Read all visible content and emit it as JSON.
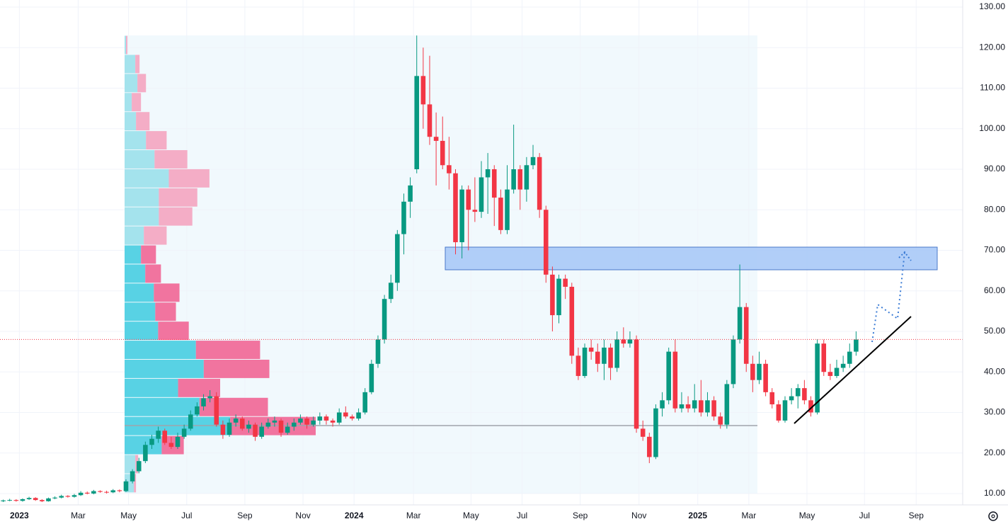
{
  "chart_data": {
    "type": "candlestick",
    "ylim": [
      7.2,
      131.75
    ],
    "yticks": [
      {
        "value": 10,
        "label": "10.00"
      },
      {
        "value": 20,
        "label": "20.00"
      },
      {
        "value": 30,
        "label": "30.00"
      },
      {
        "value": 40,
        "label": "40.00"
      },
      {
        "value": 50,
        "label": "50.00"
      },
      {
        "value": 60,
        "label": "60.00"
      },
      {
        "value": 70,
        "label": "70.00"
      },
      {
        "value": 80,
        "label": "80.00"
      },
      {
        "value": 90,
        "label": "90.00"
      },
      {
        "value": 100,
        "label": "100.00"
      },
      {
        "value": 110,
        "label": "110.00"
      },
      {
        "value": 120,
        "label": "120.00"
      },
      {
        "value": 130,
        "label": "130.00"
      }
    ],
    "xlim": [
      -0.5,
      148.5
    ],
    "xticks": [
      {
        "value": 2.5,
        "label": "2023"
      },
      {
        "value": 11.6,
        "label": "Mar"
      },
      {
        "value": 19.4,
        "label": "May"
      },
      {
        "value": 28.4,
        "label": "Jul"
      },
      {
        "value": 37.4,
        "label": "Sep"
      },
      {
        "value": 46.4,
        "label": "Nov"
      },
      {
        "value": 54.3,
        "label": "2024"
      },
      {
        "value": 63.5,
        "label": "Mar"
      },
      {
        "value": 72.4,
        "label": "May"
      },
      {
        "value": 80.3,
        "label": "Jul"
      },
      {
        "value": 89.3,
        "label": "Sep"
      },
      {
        "value": 98.4,
        "label": "Nov"
      },
      {
        "value": 107.5,
        "label": "2025"
      },
      {
        "value": 115.4,
        "label": "Mar"
      },
      {
        "value": 124.4,
        "label": "May"
      },
      {
        "value": 133.3,
        "label": "Jul"
      },
      {
        "value": 141.3,
        "label": "Sep"
      }
    ],
    "grid": true,
    "up_color": "#089981",
    "down_color": "#f23645",
    "candles": [
      [
        8.1,
        8.5,
        7.9,
        8.3
      ],
      [
        8.3,
        8.7,
        8.1,
        8.4
      ],
      [
        8.4,
        8.6,
        8.0,
        8.2
      ],
      [
        8.2,
        8.8,
        8.0,
        8.6
      ],
      [
        8.6,
        9.2,
        8.4,
        8.9
      ],
      [
        8.9,
        9.1,
        8.2,
        8.4
      ],
      [
        8.4,
        8.6,
        7.9,
        8.1
      ],
      [
        8.1,
        9.0,
        8.0,
        8.8
      ],
      [
        8.8,
        9.3,
        8.6,
        9.0
      ],
      [
        9.0,
        9.7,
        8.8,
        9.4
      ],
      [
        9.4,
        9.6,
        9.0,
        9.2
      ],
      [
        9.2,
        9.9,
        9.0,
        9.6
      ],
      [
        9.6,
        10.6,
        9.4,
        10.2
      ],
      [
        10.2,
        10.5,
        9.8,
        10.0
      ],
      [
        10.0,
        10.9,
        9.8,
        10.6
      ],
      [
        10.6,
        10.8,
        10.2,
        10.4
      ],
      [
        10.4,
        10.7,
        10.0,
        10.3
      ],
      [
        10.3,
        11.1,
        10.1,
        10.8
      ],
      [
        10.8,
        11.0,
        10.3,
        10.6
      ],
      [
        10.6,
        13.5,
        10.4,
        13.0
      ],
      [
        13.0,
        16.0,
        12.5,
        15.5
      ],
      [
        15.5,
        18.8,
        15.0,
        18.0
      ],
      [
        18.0,
        22.8,
        17.5,
        22.0
      ],
      [
        22.0,
        24.5,
        21.0,
        23.5
      ],
      [
        23.5,
        26.5,
        22.5,
        25.5
      ],
      [
        25.5,
        26.0,
        22.0,
        22.5
      ],
      [
        22.5,
        24.0,
        21.0,
        21.5
      ],
      [
        21.5,
        25.0,
        21.0,
        24.0
      ],
      [
        24.0,
        27.0,
        23.5,
        26.0
      ],
      [
        26.0,
        30.5,
        25.5,
        29.5
      ],
      [
        29.5,
        32.5,
        29.0,
        31.5
      ],
      [
        31.5,
        34.5,
        30.5,
        33.5
      ],
      [
        33.5,
        35.5,
        32.5,
        34.0
      ],
      [
        34.0,
        35.0,
        26.5,
        27.0
      ],
      [
        27.0,
        28.0,
        23.5,
        24.5
      ],
      [
        24.5,
        28.5,
        24.0,
        27.5
      ],
      [
        27.5,
        29.5,
        26.5,
        28.5
      ],
      [
        28.5,
        29.0,
        25.5,
        26.0
      ],
      [
        26.0,
        28.0,
        25.0,
        27.0
      ],
      [
        27.0,
        27.5,
        23.0,
        24.0
      ],
      [
        24.0,
        27.5,
        23.5,
        26.5
      ],
      [
        26.5,
        28.5,
        26.0,
        27.5
      ],
      [
        27.5,
        29.0,
        26.5,
        28.0
      ],
      [
        28.0,
        28.5,
        24.0,
        25.0
      ],
      [
        25.0,
        27.5,
        24.5,
        26.5
      ],
      [
        26.5,
        28.5,
        25.5,
        27.5
      ],
      [
        27.5,
        29.5,
        27.0,
        28.5
      ],
      [
        28.5,
        29.0,
        26.0,
        27.0
      ],
      [
        27.0,
        29.0,
        26.5,
        28.0
      ],
      [
        28.0,
        30.0,
        27.0,
        29.0
      ],
      [
        29.0,
        29.5,
        27.0,
        28.0
      ],
      [
        28.0,
        28.5,
        26.5,
        27.5
      ],
      [
        27.5,
        31.0,
        27.0,
        30.0
      ],
      [
        30.0,
        31.5,
        28.5,
        29.0
      ],
      [
        29.0,
        29.5,
        28.0,
        28.5
      ],
      [
        28.5,
        31.0,
        28.0,
        30.0
      ],
      [
        30.0,
        36.0,
        29.5,
        35.0
      ],
      [
        35.0,
        43.0,
        34.5,
        42.0
      ],
      [
        42.0,
        49.0,
        41.0,
        48.0
      ],
      [
        48.0,
        59.0,
        47.0,
        58.0
      ],
      [
        58.0,
        64.0,
        57.0,
        62.0
      ],
      [
        62.0,
        75.0,
        60.0,
        74.0
      ],
      [
        74.0,
        84.0,
        69.0,
        82.0
      ],
      [
        82.0,
        88.0,
        78.0,
        86.0
      ],
      [
        90.0,
        123.0,
        89.0,
        113.0
      ],
      [
        113.0,
        120.0,
        100.0,
        106.0
      ],
      [
        106.0,
        118.0,
        96.0,
        98.0
      ],
      [
        98.0,
        104.0,
        86.0,
        97.0
      ],
      [
        97.0,
        103.0,
        90.0,
        91.0
      ],
      [
        91.0,
        98.0,
        85.0,
        89.0
      ],
      [
        89.0,
        90.0,
        69.0,
        72.0
      ],
      [
        72.0,
        86.0,
        68.0,
        85.0
      ],
      [
        85.0,
        86.0,
        70.0,
        80.0
      ],
      [
        80.0,
        88.0,
        77.0,
        79.5
      ],
      [
        79.5,
        92.0,
        78.0,
        88.0
      ],
      [
        88.0,
        94.0,
        79.0,
        90.0
      ],
      [
        90.0,
        91.0,
        76.0,
        83.0
      ],
      [
        83.0,
        85.0,
        74.0,
        75.0
      ],
      [
        75.0,
        91.0,
        74.0,
        85.0
      ],
      [
        85.0,
        101.0,
        84.0,
        90.0
      ],
      [
        90.0,
        91.0,
        80.0,
        85.0
      ],
      [
        85.0,
        93.0,
        82.0,
        91.0
      ],
      [
        91.0,
        96.0,
        90.0,
        93.0
      ],
      [
        93.0,
        94.0,
        78.0,
        80.0
      ],
      [
        80.0,
        81.0,
        62.0,
        64.0
      ],
      [
        64.0,
        66.0,
        50.0,
        54.0
      ],
      [
        54.0,
        64.0,
        52.0,
        63.0
      ],
      [
        63.0,
        64.0,
        58.0,
        61.0
      ],
      [
        61.0,
        62.0,
        42.0,
        44.0
      ],
      [
        44.0,
        46.0,
        38.0,
        39.0
      ],
      [
        39.0,
        47.0,
        38.5,
        46.0
      ],
      [
        46.0,
        48.0,
        43.0,
        45.0
      ],
      [
        45.0,
        47.0,
        40.0,
        42.0
      ],
      [
        42.0,
        48.0,
        38.0,
        46.0
      ],
      [
        46.0,
        47.0,
        38.0,
        41.0
      ],
      [
        41.0,
        50.0,
        40.0,
        48.0
      ],
      [
        48.0,
        51.0,
        46.0,
        47.0
      ],
      [
        47.0,
        50.0,
        46.0,
        48.0
      ],
      [
        48.0,
        49.0,
        25.0,
        26.0
      ],
      [
        26.0,
        28.0,
        23.0,
        24.0
      ],
      [
        24.0,
        25.0,
        17.5,
        19.0
      ],
      [
        19.0,
        32.0,
        18.5,
        31.0
      ],
      [
        31.0,
        35.0,
        29.0,
        33.0
      ],
      [
        33.0,
        46.0,
        32.0,
        45.0
      ],
      [
        45.0,
        48.0,
        30.0,
        31.0
      ],
      [
        31.0,
        35.0,
        30.0,
        32.0
      ],
      [
        32.0,
        34.0,
        30.0,
        31.0
      ],
      [
        31.0,
        37.0,
        30.0,
        33.0
      ],
      [
        33.0,
        38.0,
        29.0,
        30.0
      ],
      [
        30.0,
        35.0,
        29.0,
        33.0
      ],
      [
        33.0,
        34.0,
        28.0,
        29.0
      ],
      [
        29.0,
        30.0,
        26.0,
        27.0
      ],
      [
        27.0,
        38.0,
        26.0,
        37.0
      ],
      [
        37.0,
        49.0,
        36.0,
        48.0
      ],
      [
        48.0,
        66.5,
        47.0,
        56.0
      ],
      [
        56.0,
        57.0,
        40.0,
        42.0
      ],
      [
        42.0,
        44.0,
        35.0,
        38.0
      ],
      [
        38.0,
        45.0,
        37.0,
        42.0
      ],
      [
        42.0,
        43.0,
        34.0,
        35.0
      ],
      [
        35.0,
        36.0,
        31.0,
        32.0
      ],
      [
        32.0,
        33.0,
        27.5,
        28.0
      ],
      [
        28.0,
        34.0,
        27.5,
        33.0
      ],
      [
        33.0,
        36.0,
        32.0,
        34.0
      ],
      [
        34.0,
        37.0,
        31.0,
        36.0
      ],
      [
        36.0,
        38.0,
        32.0,
        33.0
      ],
      [
        33.0,
        34.0,
        29.0,
        30.0
      ],
      [
        30.0,
        48.0,
        29.5,
        47.0
      ],
      [
        47.0,
        48.0,
        39.0,
        40.0
      ],
      [
        40.0,
        42.0,
        38.0,
        39.0
      ],
      [
        39.0,
        43.0,
        38.5,
        41.0
      ],
      [
        41.0,
        44.0,
        40.0,
        42.0
      ],
      [
        42.0,
        47.0,
        41.0,
        45.0
      ],
      [
        45.0,
        50.0,
        44.0,
        48.0
      ]
    ],
    "volume_profile": {
      "levels": [
        123.0,
        118.3,
        113.6,
        108.9,
        104.2,
        99.5,
        94.8,
        90.1,
        85.4,
        80.7,
        76.0,
        71.3,
        66.6,
        61.9,
        57.2,
        52.5,
        47.8,
        43.1,
        38.4,
        33.7,
        29.0,
        24.3,
        19.6,
        14.9,
        10.2
      ],
      "up": [
        2,
        15,
        18,
        10,
        16,
        30,
        42,
        62,
        48,
        48,
        27,
        23,
        29,
        41,
        43,
        47,
        100,
        111,
        75,
        105,
        148,
        52,
        15,
        13
      ],
      "down": [
        2,
        6,
        12,
        13,
        19,
        29,
        46,
        57,
        54,
        47,
        32,
        21,
        22,
        36,
        29,
        43,
        90,
        92,
        59,
        96,
        120,
        31,
        4,
        3
      ],
      "value_area": [
        19.6,
        71.3
      ]
    }
  }
}
